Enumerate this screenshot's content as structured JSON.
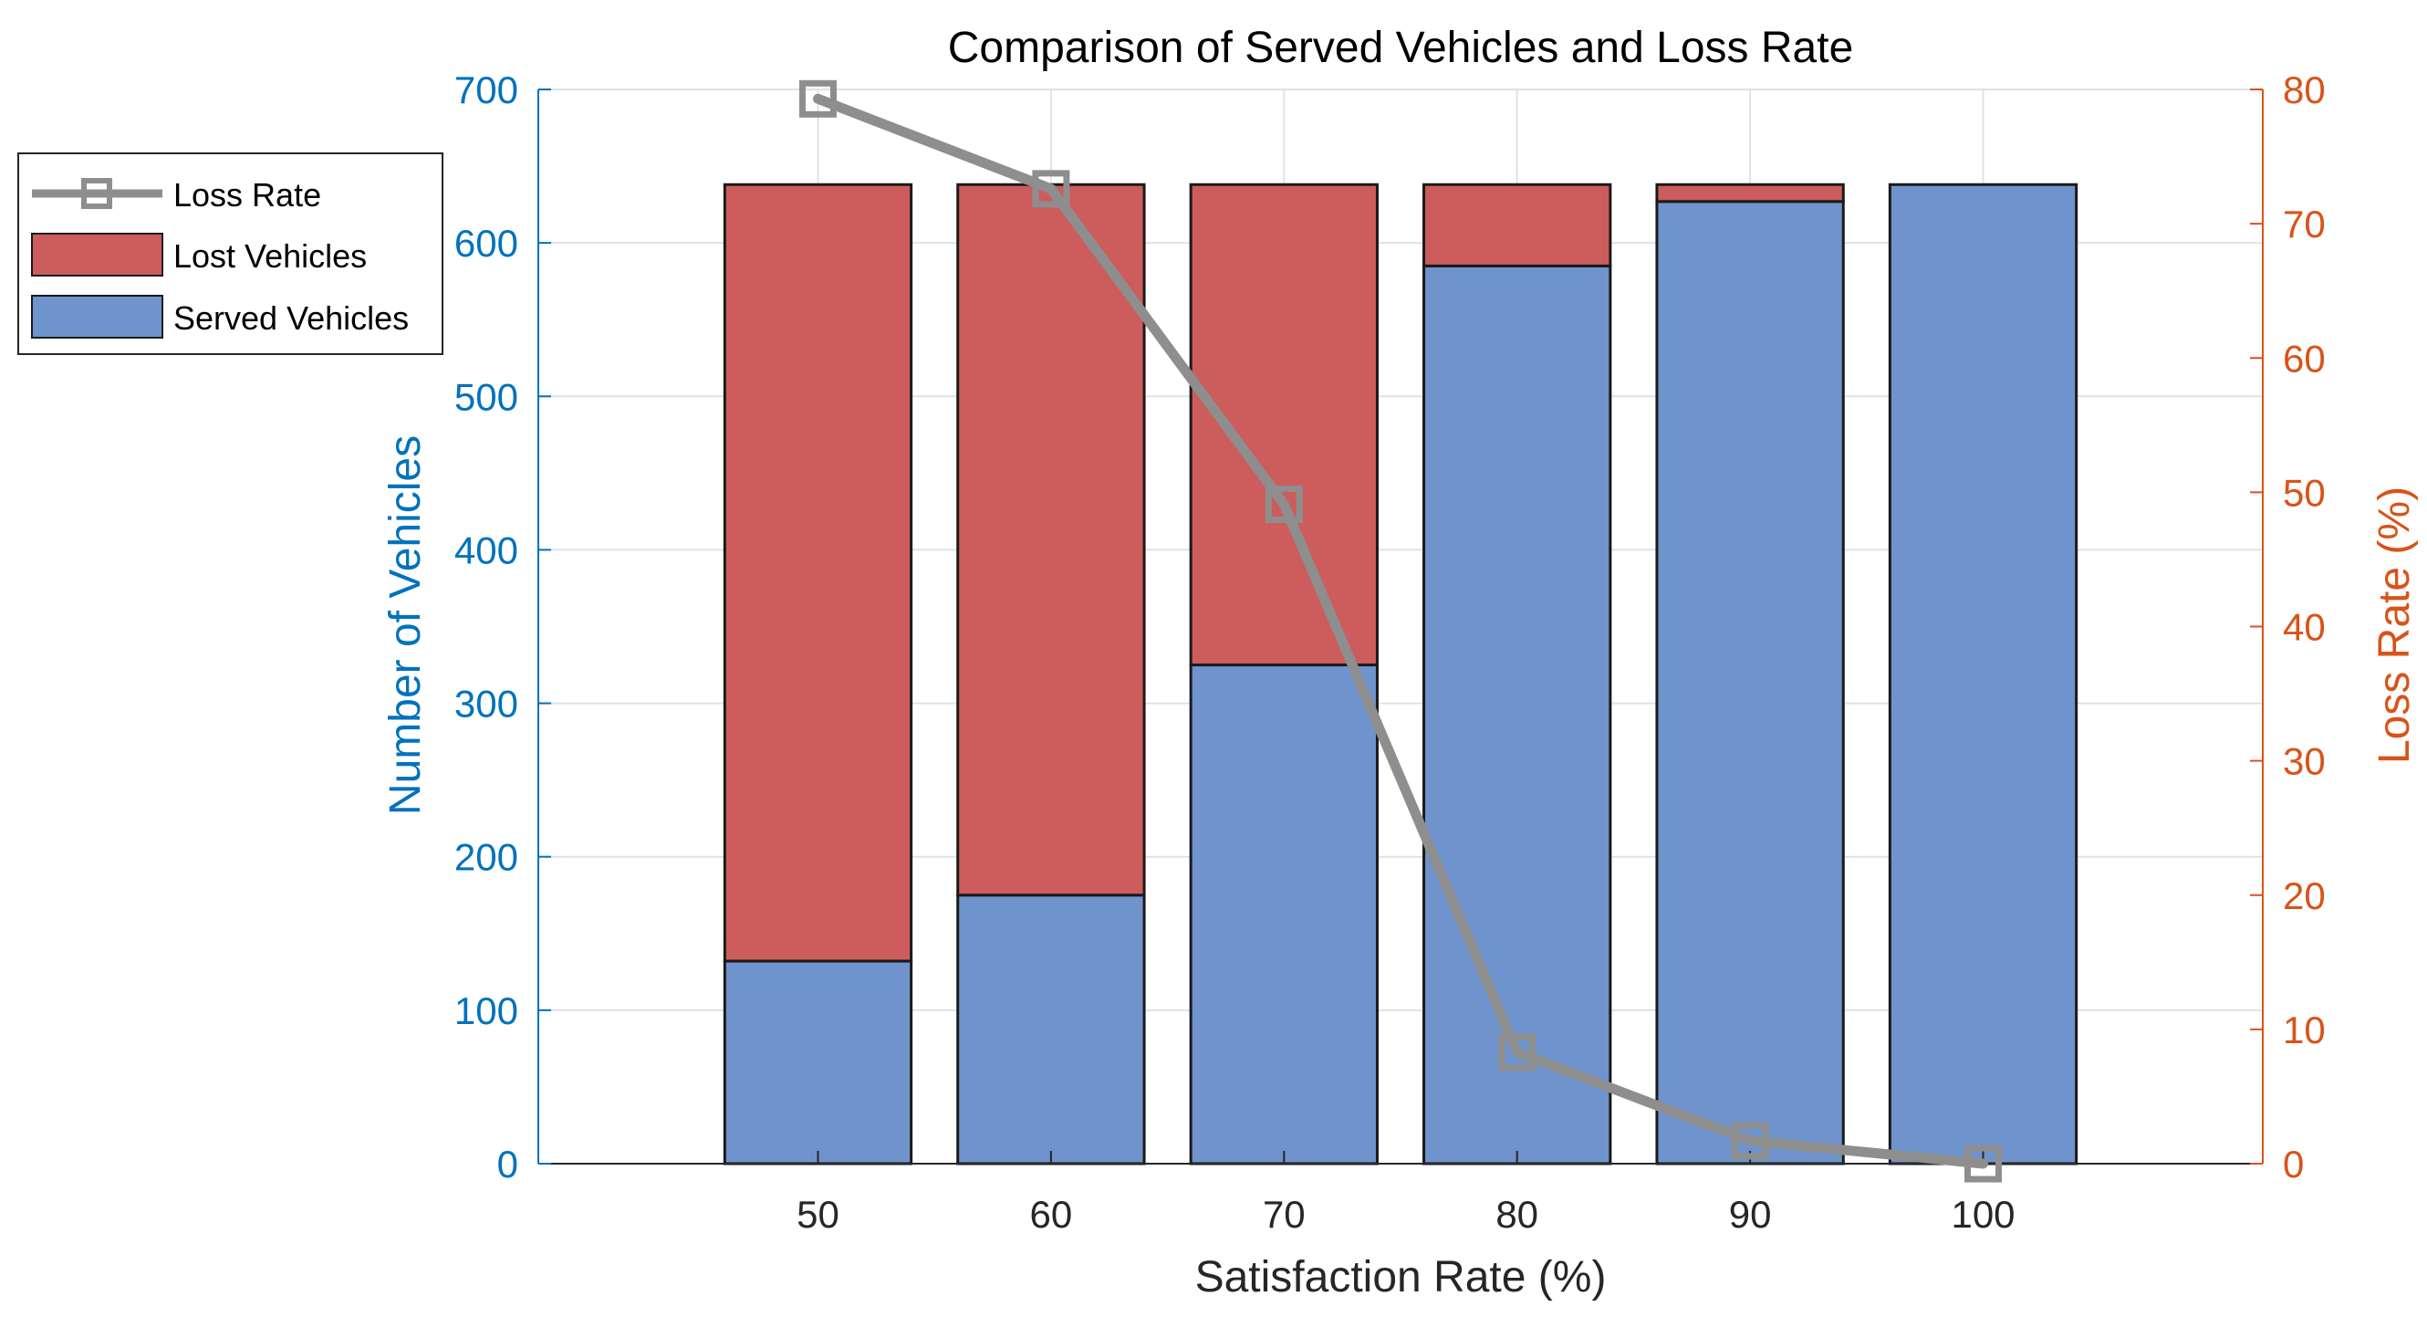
{
  "chart_data": {
    "type": "bar",
    "stacked": true,
    "title": "Comparison of Served Vehicles and Loss Rate",
    "xlabel": "Satisfaction Rate (%)",
    "ylabel_left": "Number of Vehicles",
    "ylabel_right": "Loss Rate (%)",
    "categories": [
      "50",
      "60",
      "70",
      "80",
      "90",
      "100"
    ],
    "x_values": [
      50,
      60,
      70,
      80,
      90,
      100
    ],
    "xlim": [
      38,
      112
    ],
    "ylim_left": [
      0,
      700
    ],
    "ylim_right": [
      0,
      80
    ],
    "yticks_left": [
      0,
      100,
      200,
      300,
      400,
      500,
      600,
      700
    ],
    "yticks_right": [
      0,
      10,
      20,
      30,
      40,
      50,
      60,
      70,
      80
    ],
    "grid": true,
    "legend_position": "outside-left",
    "series": [
      {
        "name": "Served Vehicles",
        "kind": "bar",
        "axis": "left",
        "values": [
          132,
          175,
          325,
          585,
          627,
          638
        ]
      },
      {
        "name": "Lost Vehicles",
        "kind": "bar",
        "axis": "left",
        "values": [
          506,
          463,
          313,
          53,
          11,
          0
        ]
      },
      {
        "name": "Loss Rate",
        "kind": "line",
        "axis": "right",
        "marker": "square",
        "values": [
          79.3,
          72.6,
          49.1,
          8.3,
          1.7,
          0
        ]
      }
    ],
    "legend": [
      "Loss Rate",
      "Lost Vehicles",
      "Served Vehicles"
    ],
    "colors": {
      "served": "#6F93CC",
      "lost": "#CD5C5C",
      "loss_rate": "#8E8E8E",
      "left_axis": "#0072BD",
      "right_axis": "#D95319",
      "grid": "#DCE3EA",
      "text": "#262626"
    }
  }
}
